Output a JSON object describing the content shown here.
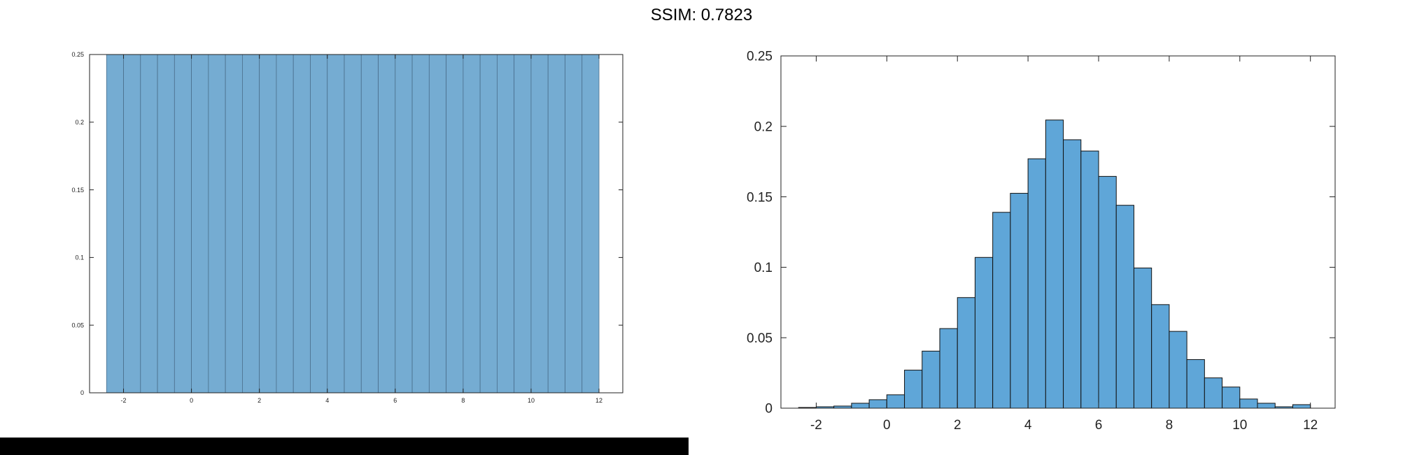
{
  "title": "SSIM: 0.7823",
  "colors": {
    "bar_fill": "#75acd2",
    "bar_fill_right": "#5fa6d8",
    "axis": "#222222",
    "background": "#ffffff",
    "bottom_bar": "#000000"
  },
  "chart_data": [
    {
      "type": "bar",
      "bin_edges": [
        -2.5,
        -2.0,
        -1.5,
        -1.0,
        -0.5,
        0.0,
        0.5,
        1.0,
        1.5,
        2.0,
        2.5,
        3.0,
        3.5,
        4.0,
        4.5,
        5.0,
        5.5,
        6.0,
        6.5,
        7.0,
        7.5,
        8.0,
        8.5,
        9.0,
        9.5,
        10.0,
        10.5,
        11.0,
        11.5,
        12.0
      ],
      "values": [
        0.25,
        0.25,
        0.25,
        0.25,
        0.25,
        0.25,
        0.25,
        0.25,
        0.25,
        0.25,
        0.25,
        0.25,
        0.25,
        0.25,
        0.25,
        0.25,
        0.25,
        0.25,
        0.25,
        0.25,
        0.25,
        0.25,
        0.25,
        0.25,
        0.25,
        0.25,
        0.25,
        0.25,
        0.25
      ],
      "xlim": [
        -3,
        12.7
      ],
      "ylim": [
        0,
        0.25
      ],
      "xticks": [
        -2,
        0,
        2,
        4,
        6,
        8,
        10,
        12
      ],
      "xtick_labels": [
        "-2",
        "0",
        "2",
        "4",
        "6",
        "8",
        "10",
        "12"
      ],
      "yticks": [
        0,
        0.05,
        0.1,
        0.15,
        0.2,
        0.25
      ],
      "ytick_labels": [
        "0",
        "0.05",
        "0.1",
        "0.15",
        "0.2",
        "0.25"
      ]
    },
    {
      "type": "bar",
      "bin_edges": [
        -2.5,
        -2.0,
        -1.5,
        -1.0,
        -0.5,
        0.0,
        0.5,
        1.0,
        1.5,
        2.0,
        2.5,
        3.0,
        3.5,
        4.0,
        4.5,
        5.0,
        5.5,
        6.0,
        6.5,
        7.0,
        7.5,
        8.0,
        8.5,
        9.0,
        9.5,
        10.0,
        10.5,
        11.0,
        11.5,
        12.0
      ],
      "values": [
        0.0005,
        0.001,
        0.0015,
        0.0035,
        0.006,
        0.0095,
        0.027,
        0.0405,
        0.0565,
        0.0785,
        0.107,
        0.139,
        0.1525,
        0.177,
        0.2045,
        0.1905,
        0.1825,
        0.1645,
        0.144,
        0.0995,
        0.0735,
        0.0545,
        0.0345,
        0.0215,
        0.015,
        0.0065,
        0.0035,
        0.001,
        0.0025
      ],
      "xlim": [
        -3,
        12.7
      ],
      "ylim": [
        0,
        0.25
      ],
      "xticks": [
        -2,
        0,
        2,
        4,
        6,
        8,
        10,
        12
      ],
      "xtick_labels": [
        "-2",
        "0",
        "2",
        "4",
        "6",
        "8",
        "10",
        "12"
      ],
      "yticks": [
        0,
        0.05,
        0.1,
        0.15,
        0.2,
        0.25
      ],
      "ytick_labels": [
        "0",
        "0.05",
        "0.1",
        "0.15",
        "0.2",
        "0.25"
      ]
    }
  ]
}
